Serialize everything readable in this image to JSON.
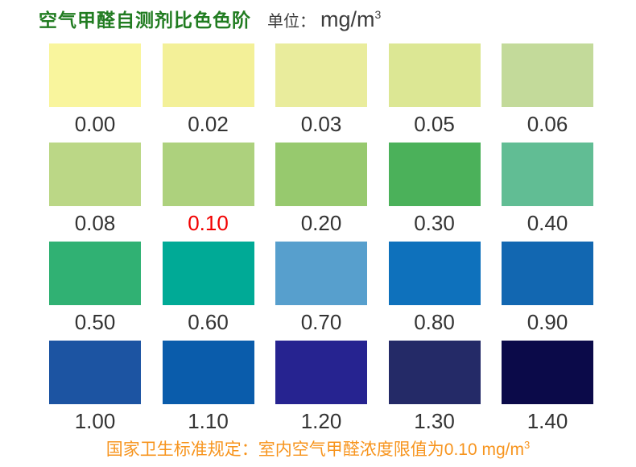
{
  "header": {
    "title": "空气甲醛自测剂比色色阶",
    "unit_label": "单位：",
    "unit_value": "mg/m",
    "unit_exponent": "3"
  },
  "footer": {
    "note_text": "国家卫生标准规定：室内空气甲醛浓度限值为0.10 mg/m",
    "note_exponent": "3"
  },
  "colors": {
    "title_green": "#217c21",
    "unit_gray": "#3c3c3c",
    "label_dark": "#333333",
    "limit_red": "#f20000",
    "note_orange": "#f7941d",
    "background": "#ffffff"
  },
  "grid": {
    "rows": [
      {
        "cells": [
          {
            "value": "0.00",
            "color": "#f9f59d"
          },
          {
            "value": "0.02",
            "color": "#f3f098"
          },
          {
            "value": "0.03",
            "color": "#e9ec9c"
          },
          {
            "value": "0.05",
            "color": "#dce794"
          },
          {
            "value": "0.06",
            "color": "#c3da9a"
          }
        ]
      },
      {
        "cells": [
          {
            "value": "0.08",
            "color": "#bbd786"
          },
          {
            "value": "0.10",
            "color": "#add17d",
            "label_color": "#f20000"
          },
          {
            "value": "0.20",
            "color": "#97c96e"
          },
          {
            "value": "0.30",
            "color": "#4bb15a"
          },
          {
            "value": "0.40",
            "color": "#61bd94"
          }
        ]
      },
      {
        "cells": [
          {
            "value": "0.50",
            "color": "#30b173"
          },
          {
            "value": "0.60",
            "color": "#00aa96"
          },
          {
            "value": "0.70",
            "color": "#579fcd"
          },
          {
            "value": "0.80",
            "color": "#0e71bc"
          },
          {
            "value": "0.90",
            "color": "#1267b1"
          }
        ]
      },
      {
        "cells": [
          {
            "value": "1.00",
            "color": "#1c54a2"
          },
          {
            "value": "1.10",
            "color": "#0a5cab"
          },
          {
            "value": "1.20",
            "color": "#262390"
          },
          {
            "value": "1.30",
            "color": "#242a67"
          },
          {
            "value": "1.40",
            "color": "#0b0a49"
          }
        ]
      }
    ]
  },
  "chart_data": {
    "type": "heatmap",
    "title": "空气甲醛自测剂比色色阶",
    "unit": "mg/m3",
    "layout": {
      "rows": 4,
      "columns": 5,
      "legend": "none",
      "grid": "off"
    },
    "values": [
      0.0,
      0.02,
      0.03,
      0.05,
      0.06,
      0.08,
      0.1,
      0.2,
      0.3,
      0.4,
      0.5,
      0.6,
      0.7,
      0.8,
      0.9,
      1.0,
      1.1,
      1.2,
      1.3,
      1.4
    ],
    "colors": [
      "#f9f59d",
      "#f3f098",
      "#e9ec9c",
      "#dce794",
      "#c3da9a",
      "#bbd786",
      "#add17d",
      "#97c96e",
      "#4bb15a",
      "#61bd94",
      "#30b173",
      "#00aa96",
      "#579fcd",
      "#0e71bc",
      "#1267b1",
      "#1c54a2",
      "#0a5cab",
      "#262390",
      "#242a67",
      "#0b0a49"
    ],
    "highlighted_value": 0.1,
    "note": "国家卫生标准规定：室内空气甲醛浓度限值为0.10 mg/m3"
  }
}
